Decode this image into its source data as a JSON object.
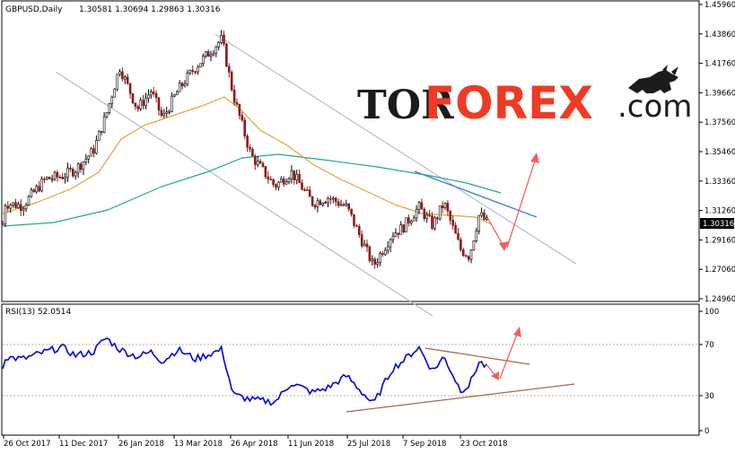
{
  "header": {
    "symbol": "GBPUSD,Daily",
    "ohlc": "1.30581 1.30694 1.29863 1.30316"
  },
  "logo": {
    "part1": "TOR",
    "part2": "FOREX",
    "part3": ".com",
    "icon": "bull-icon"
  },
  "price_scale": {
    "ticks": [
      "1.45960",
      "1.43860",
      "1.41760",
      "1.39660",
      "1.37560",
      "1.35460",
      "1.33360",
      "1.31260",
      "1.29160",
      "1.27060",
      "1.24960"
    ],
    "current_price": "1.30316"
  },
  "rsi_panel": {
    "label": "RSI(13) 52.0514",
    "ticks": [
      "100",
      "70",
      "30",
      "0"
    ]
  },
  "time_axis": {
    "labels": [
      "26 Oct 2017",
      "11 Dec 2017",
      "26 Jan 2018",
      "13 Mar 2018",
      "26 Apr 2018",
      "11 Jun 2018",
      "25 Jul 2018",
      "7 Sep 2018",
      "23 Oct 2018"
    ]
  },
  "colors": {
    "bull": "#000000",
    "bear": "#8b1a1a",
    "ma_fast": "#e3a33a",
    "ma_slow": "#1faa8c",
    "rsi": "#0000e0",
    "channel": "#aebfd0",
    "forecast": "#f06060",
    "trend_blue": "#3f7fe0",
    "trend_brown": "#a06a50"
  },
  "chart_data": {
    "type": "candlestick",
    "x": [
      "2017-10-26",
      "2017-12-11",
      "2018-01-26",
      "2018-03-13",
      "2018-04-26",
      "2018-06-11",
      "2018-07-25",
      "2018-09-07",
      "2018-10-23"
    ],
    "close_path": [
      [
        "2017-10-26",
        1.318
      ],
      [
        "2017-11-10",
        1.316
      ],
      [
        "2017-11-28",
        1.335
      ],
      [
        "2017-12-11",
        1.337
      ],
      [
        "2017-12-22",
        1.342
      ],
      [
        "2018-01-05",
        1.355
      ],
      [
        "2018-01-15",
        1.38
      ],
      [
        "2018-01-26",
        1.415
      ],
      [
        "2018-02-09",
        1.385
      ],
      [
        "2018-02-20",
        1.398
      ],
      [
        "2018-03-01",
        1.378
      ],
      [
        "2018-03-13",
        1.398
      ],
      [
        "2018-03-27",
        1.415
      ],
      [
        "2018-04-17",
        1.435
      ],
      [
        "2018-04-26",
        1.395
      ],
      [
        "2018-05-10",
        1.352
      ],
      [
        "2018-05-29",
        1.33
      ],
      [
        "2018-06-11",
        1.34
      ],
      [
        "2018-06-28",
        1.318
      ],
      [
        "2018-07-10",
        1.322
      ],
      [
        "2018-07-25",
        1.315
      ],
      [
        "2018-08-15",
        1.273
      ],
      [
        "2018-08-30",
        1.296
      ],
      [
        "2018-09-07",
        1.3
      ],
      [
        "2018-09-20",
        1.315
      ],
      [
        "2018-10-01",
        1.302
      ],
      [
        "2018-10-10",
        1.318
      ],
      [
        "2018-10-23",
        1.285
      ],
      [
        "2018-10-30",
        1.28
      ],
      [
        "2018-11-07",
        1.31
      ],
      [
        "2018-11-14",
        1.303
      ]
    ],
    "ylim": [
      1.2496,
      1.4596
    ],
    "rsi_path": [
      [
        "2017-10-26",
        62
      ],
      [
        "2017-11-10",
        60
      ],
      [
        "2017-11-28",
        66
      ],
      [
        "2017-12-11",
        70
      ],
      [
        "2017-12-22",
        63
      ],
      [
        "2018-01-05",
        66
      ],
      [
        "2018-01-15",
        78
      ],
      [
        "2018-01-26",
        68
      ],
      [
        "2018-02-09",
        62
      ],
      [
        "2018-02-20",
        66
      ],
      [
        "2018-03-01",
        58
      ],
      [
        "2018-03-13",
        68
      ],
      [
        "2018-03-27",
        60
      ],
      [
        "2018-04-17",
        68
      ],
      [
        "2018-04-26",
        30
      ],
      [
        "2018-05-10",
        26
      ],
      [
        "2018-05-29",
        24
      ],
      [
        "2018-06-11",
        40
      ],
      [
        "2018-06-28",
        32
      ],
      [
        "2018-07-10",
        36
      ],
      [
        "2018-07-25",
        46
      ],
      [
        "2018-08-15",
        22
      ],
      [
        "2018-08-30",
        52
      ],
      [
        "2018-09-07",
        58
      ],
      [
        "2018-09-20",
        70
      ],
      [
        "2018-10-01",
        50
      ],
      [
        "2018-10-10",
        62
      ],
      [
        "2018-10-23",
        34
      ],
      [
        "2018-10-30",
        38
      ],
      [
        "2018-11-07",
        58
      ],
      [
        "2018-11-14",
        52
      ]
    ],
    "rsi_ylim": [
      0,
      100
    ]
  }
}
